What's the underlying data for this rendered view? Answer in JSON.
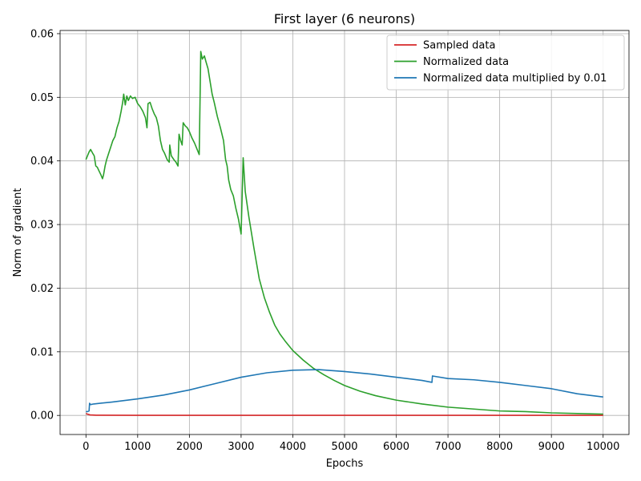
{
  "chart_data": {
    "type": "line",
    "title": "First layer (6 neurons)",
    "xlabel": "Epochs",
    "ylabel": "Norm of gradient",
    "xlim": [
      -500,
      10500
    ],
    "ylim": [
      -0.003,
      0.0605
    ],
    "x_ticks": [
      0,
      1000,
      2000,
      3000,
      4000,
      5000,
      6000,
      7000,
      8000,
      9000,
      10000
    ],
    "x_tick_labels": [
      "0",
      "1000",
      "2000",
      "3000",
      "4000",
      "5000",
      "6000",
      "7000",
      "8000",
      "9000",
      "10000"
    ],
    "y_ticks": [
      0.0,
      0.01,
      0.02,
      0.03,
      0.04,
      0.05,
      0.06
    ],
    "y_tick_labels": [
      "0.00",
      "0.01",
      "0.02",
      "0.03",
      "0.04",
      "0.05",
      "0.06"
    ],
    "grid": true,
    "legend_position": "top-right",
    "series": [
      {
        "name": "Sampled data",
        "color": "#d62728",
        "points": [
          [
            0,
            0.0003
          ],
          [
            30,
            0.0002
          ],
          [
            80,
            8e-05
          ],
          [
            200,
            3e-05
          ],
          [
            1000,
            1e-05
          ],
          [
            10000,
            1e-05
          ]
        ]
      },
      {
        "name": "Normalized data",
        "color": "#2ca02c",
        "points": [
          [
            0,
            0.0402
          ],
          [
            30,
            0.0408
          ],
          [
            60,
            0.0414
          ],
          [
            90,
            0.0418
          ],
          [
            130,
            0.0412
          ],
          [
            160,
            0.0408
          ],
          [
            190,
            0.0392
          ],
          [
            220,
            0.039
          ],
          [
            260,
            0.0383
          ],
          [
            290,
            0.0378
          ],
          [
            320,
            0.0372
          ],
          [
            340,
            0.0378
          ],
          [
            370,
            0.0392
          ],
          [
            400,
            0.0402
          ],
          [
            440,
            0.0412
          ],
          [
            480,
            0.0422
          ],
          [
            520,
            0.0432
          ],
          [
            560,
            0.0438
          ],
          [
            600,
            0.0452
          ],
          [
            640,
            0.0462
          ],
          [
            680,
            0.0478
          ],
          [
            710,
            0.0492
          ],
          [
            730,
            0.0505
          ],
          [
            760,
            0.0488
          ],
          [
            790,
            0.0502
          ],
          [
            820,
            0.0495
          ],
          [
            860,
            0.0502
          ],
          [
            900,
            0.0498
          ],
          [
            950,
            0.05
          ],
          [
            1000,
            0.049
          ],
          [
            1050,
            0.0485
          ],
          [
            1100,
            0.0478
          ],
          [
            1150,
            0.0468
          ],
          [
            1180,
            0.0452
          ],
          [
            1200,
            0.049
          ],
          [
            1240,
            0.0492
          ],
          [
            1280,
            0.0482
          ],
          [
            1320,
            0.0474
          ],
          [
            1360,
            0.0468
          ],
          [
            1400,
            0.0455
          ],
          [
            1440,
            0.0432
          ],
          [
            1480,
            0.0418
          ],
          [
            1520,
            0.0412
          ],
          [
            1570,
            0.0402
          ],
          [
            1610,
            0.0398
          ],
          [
            1620,
            0.0425
          ],
          [
            1650,
            0.0408
          ],
          [
            1700,
            0.0402
          ],
          [
            1740,
            0.0398
          ],
          [
            1780,
            0.0392
          ],
          [
            1800,
            0.0442
          ],
          [
            1830,
            0.0432
          ],
          [
            1860,
            0.0425
          ],
          [
            1880,
            0.046
          ],
          [
            1920,
            0.0455
          ],
          [
            1960,
            0.0452
          ],
          [
            2000,
            0.0446
          ],
          [
            2050,
            0.0436
          ],
          [
            2100,
            0.0428
          ],
          [
            2150,
            0.0418
          ],
          [
            2190,
            0.041
          ],
          [
            2200,
            0.0462
          ],
          [
            2220,
            0.0572
          ],
          [
            2250,
            0.056
          ],
          [
            2290,
            0.0565
          ],
          [
            2320,
            0.0556
          ],
          [
            2360,
            0.0545
          ],
          [
            2400,
            0.0525
          ],
          [
            2440,
            0.0505
          ],
          [
            2480,
            0.0492
          ],
          [
            2540,
            0.047
          ],
          [
            2600,
            0.0452
          ],
          [
            2660,
            0.0432
          ],
          [
            2700,
            0.0402
          ],
          [
            2730,
            0.0392
          ],
          [
            2760,
            0.037
          ],
          [
            2800,
            0.0355
          ],
          [
            2850,
            0.0345
          ],
          [
            2900,
            0.0325
          ],
          [
            2950,
            0.0308
          ],
          [
            3000,
            0.0285
          ],
          [
            3040,
            0.0405
          ],
          [
            3080,
            0.0352
          ],
          [
            3150,
            0.0312
          ],
          [
            3250,
            0.0262
          ],
          [
            3350,
            0.0215
          ],
          [
            3450,
            0.0185
          ],
          [
            3550,
            0.0162
          ],
          [
            3650,
            0.0142
          ],
          [
            3750,
            0.0128
          ],
          [
            3850,
            0.0117
          ],
          [
            4000,
            0.0102
          ],
          [
            4200,
            0.0087
          ],
          [
            4400,
            0.0074
          ],
          [
            4600,
            0.0064
          ],
          [
            4800,
            0.0055
          ],
          [
            5000,
            0.0047
          ],
          [
            5300,
            0.0038
          ],
          [
            5600,
            0.0031
          ],
          [
            6000,
            0.0024
          ],
          [
            6500,
            0.0018
          ],
          [
            7000,
            0.0013
          ],
          [
            7500,
            0.001
          ],
          [
            8000,
            0.0007
          ],
          [
            8500,
            0.0006
          ],
          [
            9000,
            0.0004
          ],
          [
            9500,
            0.0003
          ],
          [
            10000,
            0.0002
          ]
        ]
      },
      {
        "name": "Normalized data multiplied by 0.01",
        "color": "#1f77b4",
        "points": [
          [
            0,
            0.0006
          ],
          [
            30,
            0.0006
          ],
          [
            60,
            0.0007
          ],
          [
            70,
            0.0019
          ],
          [
            90,
            0.0017
          ],
          [
            150,
            0.0018
          ],
          [
            500,
            0.0021
          ],
          [
            1000,
            0.0026
          ],
          [
            1500,
            0.0032
          ],
          [
            2000,
            0.004
          ],
          [
            2500,
            0.005
          ],
          [
            3000,
            0.006
          ],
          [
            3500,
            0.0067
          ],
          [
            4000,
            0.0071
          ],
          [
            4500,
            0.0072
          ],
          [
            5000,
            0.0069
          ],
          [
            5500,
            0.0065
          ],
          [
            6000,
            0.006
          ],
          [
            6500,
            0.0055
          ],
          [
            6690,
            0.0052
          ],
          [
            6700,
            0.0062
          ],
          [
            7000,
            0.0058
          ],
          [
            7500,
            0.0056
          ],
          [
            8000,
            0.0052
          ],
          [
            8500,
            0.0047
          ],
          [
            9000,
            0.0042
          ],
          [
            9500,
            0.0034
          ],
          [
            10000,
            0.0029
          ]
        ]
      }
    ]
  }
}
